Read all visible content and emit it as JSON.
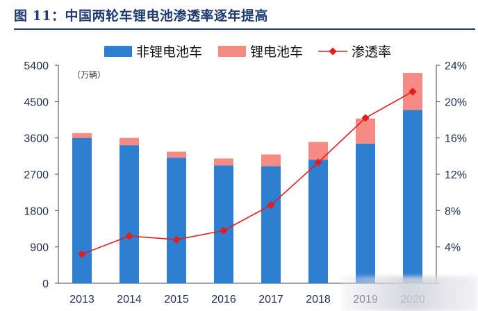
{
  "figure": {
    "title": "图 11：中国两轮车锂电池渗透率逐年提高"
  },
  "chart_data": {
    "type": "bar",
    "stacked": true,
    "unit_note": "（万辆）",
    "categories": [
      "2013",
      "2014",
      "2015",
      "2016",
      "2017",
      "2018",
      "2019",
      "2020"
    ],
    "series": [
      {
        "name": "非锂电池车",
        "kind": "bar",
        "color": "#2e7fcf",
        "values": [
          3600,
          3420,
          3110,
          2920,
          2900,
          3060,
          3460,
          4290
        ]
      },
      {
        "name": "锂电池车",
        "kind": "bar",
        "color": "#f48b84",
        "values": [
          120,
          180,
          150,
          170,
          290,
          440,
          620,
          920
        ]
      },
      {
        "name": "渗透率",
        "kind": "line",
        "axis": "right",
        "color": "#e31d1d",
        "values": [
          3.2,
          5.2,
          4.8,
          5.8,
          8.6,
          13.3,
          18.2,
          21.1
        ]
      }
    ],
    "y_left": {
      "min": 0,
      "max": 5400,
      "ticks": [
        "0",
        "900",
        "1800",
        "2700",
        "3600",
        "4500",
        "5400"
      ]
    },
    "y_right": {
      "min": 0,
      "max": 24,
      "ticks": [
        "",
        "4%",
        "8%",
        "12%",
        "16%",
        "20%",
        "24%"
      ]
    },
    "legend_position": "top",
    "grid": false
  }
}
